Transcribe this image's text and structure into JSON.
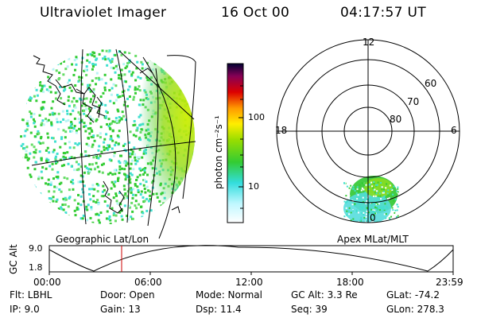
{
  "header": {
    "title": "Ultraviolet Imager",
    "date": "16 Oct 00",
    "time": "04:17:57 UT"
  },
  "colorbar": {
    "unit_label": "photon cm⁻²s⁻¹",
    "ticks": [
      "100",
      "10"
    ]
  },
  "geo_panel": {
    "label": "Geographic Lat/Lon"
  },
  "polar_panel": {
    "label": "Apex MLat/MLT",
    "mlt_labels": [
      "12",
      "18",
      "6",
      "0"
    ],
    "lat_labels": [
      "60",
      "70",
      "80"
    ]
  },
  "altitude_plot": {
    "ylabel": "GC Alt",
    "ytick_top": "9.0",
    "ytick_bottom": "1.8",
    "xticks": [
      "00:00",
      "06:00",
      "12:00",
      "18:00",
      "23:59"
    ],
    "marker_time": "04:17:57"
  },
  "info": {
    "flt": "Flt: LBHL",
    "ip": "IP:  9.0",
    "door": "Door: Open",
    "gain": "Gain: 13",
    "mode": "Mode: Normal",
    "dsp": "Dsp:    11.4",
    "gcalt": "GC Alt: 3.3 Re",
    "seq": "Seq: 39",
    "glat": "GLat: -74.2",
    "glon": "GLon: 278.3"
  },
  "colors": {
    "low": "#ffffff",
    "cyan": "#40e0d0",
    "green": "#33cc33",
    "yellow": "#ccee00",
    "orange": "#ff9900",
    "red": "#dd0000",
    "magenta": "#990044",
    "top": "#000033",
    "marker": "#cc0000"
  }
}
